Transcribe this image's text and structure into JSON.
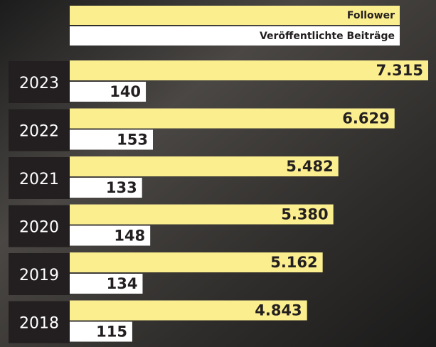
{
  "chart_data": {
    "type": "bar",
    "orientation": "horizontal",
    "categories": [
      "2023",
      "2022",
      "2021",
      "2020",
      "2019",
      "2018"
    ],
    "series": [
      {
        "name": "Follower",
        "color": "#fbee8f",
        "values": [
          7315,
          6629,
          5482,
          5380,
          5162,
          4843
        ],
        "value_labels": [
          "7.315",
          "6.629",
          "5.482",
          "5.380",
          "5.162",
          "4.843"
        ]
      },
      {
        "name": "Veröffentlichte Beiträge",
        "color": "#ffffff",
        "values": [
          140,
          153,
          133,
          148,
          134,
          115
        ]
      }
    ]
  }
}
